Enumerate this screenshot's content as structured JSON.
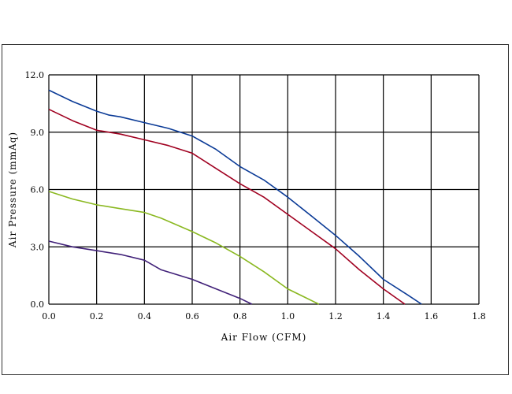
{
  "chart_data": {
    "type": "line",
    "title": "",
    "xlabel": "Air Flow (CFM)",
    "ylabel": "Air Pressure (mmAq)",
    "xlim": [
      0,
      1.8
    ],
    "ylim": [
      0,
      12
    ],
    "xticks": [
      "0.0",
      "0.2",
      "0.4",
      "0.6",
      "0.8",
      "1.0",
      "1.2",
      "1.4",
      "1.6",
      "1.8"
    ],
    "yticks": [
      "0.0",
      "3.0",
      "6.0",
      "9.0",
      "12.0"
    ],
    "grid": true,
    "series": [
      {
        "color": "#0a3a96",
        "x": [
          0,
          0.1,
          0.2,
          0.25,
          0.3,
          0.4,
          0.5,
          0.6,
          0.7,
          0.8,
          0.9,
          1.0,
          1.1,
          1.2,
          1.3,
          1.4,
          1.5,
          1.56
        ],
        "y": [
          11.2,
          10.6,
          10.1,
          9.9,
          9.8,
          9.5,
          9.2,
          8.8,
          8.1,
          7.2,
          6.5,
          5.6,
          4.6,
          3.6,
          2.5,
          1.3,
          0.5,
          0.0
        ]
      },
      {
        "color": "#a00020",
        "x": [
          0,
          0.1,
          0.2,
          0.3,
          0.4,
          0.5,
          0.6,
          0.7,
          0.8,
          0.9,
          1.0,
          1.1,
          1.2,
          1.3,
          1.4,
          1.49
        ],
        "y": [
          10.2,
          9.6,
          9.1,
          8.9,
          8.6,
          8.3,
          7.9,
          7.1,
          6.3,
          5.6,
          4.7,
          3.8,
          2.9,
          1.8,
          0.8,
          0.0
        ]
      },
      {
        "color": "#8ab820",
        "x": [
          0,
          0.1,
          0.2,
          0.3,
          0.4,
          0.47,
          0.6,
          0.7,
          0.8,
          0.9,
          1.0,
          1.13
        ],
        "y": [
          5.9,
          5.5,
          5.2,
          5.0,
          4.8,
          4.5,
          3.8,
          3.2,
          2.5,
          1.7,
          0.8,
          0.0
        ]
      },
      {
        "color": "#402078",
        "x": [
          0,
          0.1,
          0.2,
          0.3,
          0.4,
          0.47,
          0.6,
          0.7,
          0.8,
          0.85
        ],
        "y": [
          3.3,
          3.0,
          2.8,
          2.6,
          2.3,
          1.8,
          1.3,
          0.8,
          0.3,
          0.0
        ]
      }
    ]
  }
}
